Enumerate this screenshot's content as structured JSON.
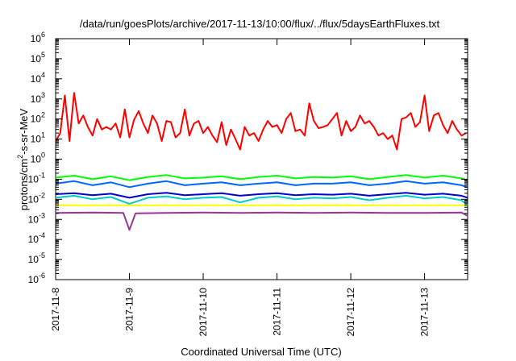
{
  "chart_data": {
    "type": "line",
    "title": "/data/run/goesPlots/archive/2017-11-13/10:00/flux/../flux/5daysEarthFluxes.txt",
    "ylabel": {
      "prefix": "protons/cm",
      "exponent": "2",
      "suffix": "-s-sr-MeV"
    },
    "xlabel": "Coordinated Universal Time (UTC)",
    "yscale": "log",
    "ylim": [
      1e-06,
      1000000.0
    ],
    "xlim": [
      "2017-11-08T00:00",
      "2017-11-13T14:00"
    ],
    "y_ticks": [
      {
        "base": "10",
        "exp": "-6",
        "value": 1e-06
      },
      {
        "base": "10",
        "exp": "-5",
        "value": 1e-05
      },
      {
        "base": "10",
        "exp": "-4",
        "value": 0.0001
      },
      {
        "base": "10",
        "exp": "-3",
        "value": 0.001
      },
      {
        "base": "10",
        "exp": "-2",
        "value": 0.01
      },
      {
        "base": "10",
        "exp": "-1",
        "value": 0.1
      },
      {
        "base": "10",
        "exp": "0",
        "value": 1
      },
      {
        "base": "10",
        "exp": "1",
        "value": 10
      },
      {
        "base": "10",
        "exp": "2",
        "value": 100
      },
      {
        "base": "10",
        "exp": "3",
        "value": 1000
      },
      {
        "base": "10",
        "exp": "4",
        "value": 10000
      },
      {
        "base": "10",
        "exp": "5",
        "value": 100000
      },
      {
        "base": "10",
        "exp": "6",
        "value": 1000000
      }
    ],
    "x_ticks": [
      "2017-11-8",
      "2017-11-9",
      "2017-11-10",
      "2017-11-11",
      "2017-11-12",
      "2017-11-13"
    ],
    "grid": false,
    "legend": "none",
    "series": [
      {
        "color": "#ff0000",
        "x": [
          "2017-11-08T00:00",
          "2017-11-08T01:30",
          "2017-11-08T03:00",
          "2017-11-08T04:30",
          "2017-11-08T06:00",
          "2017-11-08T07:30",
          "2017-11-08T09:00",
          "2017-11-08T10:30",
          "2017-11-08T12:00",
          "2017-11-08T13:30",
          "2017-11-08T15:00",
          "2017-11-08T16:30",
          "2017-11-08T18:00",
          "2017-11-08T19:30",
          "2017-11-08T21:00",
          "2017-11-08T22:30",
          "2017-11-09T00:00",
          "2017-11-09T01:30",
          "2017-11-09T03:00",
          "2017-11-09T04:30",
          "2017-11-09T06:00",
          "2017-11-09T07:30",
          "2017-11-09T09:00",
          "2017-11-09T10:30",
          "2017-11-09T12:00",
          "2017-11-09T13:30",
          "2017-11-09T15:00",
          "2017-11-09T16:30",
          "2017-11-09T18:00",
          "2017-11-09T19:30",
          "2017-11-09T21:00",
          "2017-11-09T22:30",
          "2017-11-10T00:00",
          "2017-11-10T01:30",
          "2017-11-10T03:00",
          "2017-11-10T04:30",
          "2017-11-10T06:00",
          "2017-11-10T07:30",
          "2017-11-10T09:00",
          "2017-11-10T10:30",
          "2017-11-10T12:00",
          "2017-11-10T13:30",
          "2017-11-10T15:00",
          "2017-11-10T16:30",
          "2017-11-10T18:00",
          "2017-11-10T19:30",
          "2017-11-10T21:00",
          "2017-11-10T22:30",
          "2017-11-11T00:00",
          "2017-11-11T01:30",
          "2017-11-11T03:00",
          "2017-11-11T04:30",
          "2017-11-11T06:00",
          "2017-11-11T07:30",
          "2017-11-11T09:00",
          "2017-11-11T10:30",
          "2017-11-11T12:00",
          "2017-11-11T13:30",
          "2017-11-11T15:00",
          "2017-11-11T16:30",
          "2017-11-11T18:00",
          "2017-11-11T19:30",
          "2017-11-11T21:00",
          "2017-11-11T22:30",
          "2017-11-12T00:00",
          "2017-11-12T01:30",
          "2017-11-12T03:00",
          "2017-11-12T04:30",
          "2017-11-12T06:00",
          "2017-11-12T07:30",
          "2017-11-12T09:00",
          "2017-11-12T10:30",
          "2017-11-12T12:00",
          "2017-11-12T13:30",
          "2017-11-12T15:00",
          "2017-11-12T16:30",
          "2017-11-12T18:00",
          "2017-11-12T19:30",
          "2017-11-12T21:00",
          "2017-11-12T22:30",
          "2017-11-13T00:00",
          "2017-11-13T01:30",
          "2017-11-13T03:00",
          "2017-11-13T04:30",
          "2017-11-13T06:00",
          "2017-11-13T07:30",
          "2017-11-13T09:00",
          "2017-11-13T10:30",
          "2017-11-13T12:00",
          "2017-11-13T13:30"
        ],
        "values": [
          8,
          20,
          1500,
          8,
          2000,
          60,
          150,
          40,
          15,
          100,
          30,
          40,
          30,
          60,
          12,
          300,
          12,
          90,
          250,
          60,
          20,
          150,
          60,
          8,
          80,
          70,
          12,
          20,
          300,
          15,
          60,
          80,
          20,
          40,
          15,
          7,
          70,
          5,
          30,
          10,
          3,
          40,
          15,
          20,
          8,
          30,
          80,
          40,
          50,
          20,
          100,
          200,
          25,
          30,
          15,
          600,
          80,
          35,
          40,
          50,
          100,
          200,
          15,
          80,
          25,
          40,
          150,
          60,
          80,
          40,
          15,
          20,
          10,
          15,
          3,
          100,
          120,
          200,
          40,
          70,
          1500,
          25,
          150,
          200,
          50,
          20,
          80,
          30,
          15,
          20
        ]
      },
      {
        "color": "#00ff00",
        "x": [
          "2017-11-08T00:00",
          "2017-11-08T06:00",
          "2017-11-08T12:00",
          "2017-11-08T18:00",
          "2017-11-09T00:00",
          "2017-11-09T06:00",
          "2017-11-09T12:00",
          "2017-11-09T18:00",
          "2017-11-10T00:00",
          "2017-11-10T06:00",
          "2017-11-10T12:00",
          "2017-11-10T18:00",
          "2017-11-11T00:00",
          "2017-11-11T06:00",
          "2017-11-11T12:00",
          "2017-11-11T18:00",
          "2017-11-12T00:00",
          "2017-11-12T06:00",
          "2017-11-12T12:00",
          "2017-11-12T18:00",
          "2017-11-13T00:00",
          "2017-11-13T06:00",
          "2017-11-13T12:00",
          "2017-11-13T14:00"
        ],
        "values": [
          0.12,
          0.15,
          0.1,
          0.14,
          0.09,
          0.13,
          0.16,
          0.11,
          0.12,
          0.14,
          0.1,
          0.13,
          0.15,
          0.11,
          0.13,
          0.12,
          0.14,
          0.1,
          0.13,
          0.16,
          0.12,
          0.15,
          0.11,
          0.09
        ]
      },
      {
        "color": "#0066ff",
        "x": [
          "2017-11-08T00:00",
          "2017-11-08T06:00",
          "2017-11-08T12:00",
          "2017-11-08T18:00",
          "2017-11-09T00:00",
          "2017-11-09T06:00",
          "2017-11-09T12:00",
          "2017-11-09T18:00",
          "2017-11-10T00:00",
          "2017-11-10T06:00",
          "2017-11-10T12:00",
          "2017-11-10T18:00",
          "2017-11-11T00:00",
          "2017-11-11T06:00",
          "2017-11-11T12:00",
          "2017-11-11T18:00",
          "2017-11-12T00:00",
          "2017-11-12T06:00",
          "2017-11-12T12:00",
          "2017-11-12T18:00",
          "2017-11-13T00:00",
          "2017-11-13T06:00",
          "2017-11-13T12:00",
          "2017-11-13T14:00"
        ],
        "values": [
          0.06,
          0.08,
          0.05,
          0.07,
          0.04,
          0.06,
          0.08,
          0.05,
          0.06,
          0.07,
          0.05,
          0.06,
          0.07,
          0.05,
          0.06,
          0.06,
          0.07,
          0.05,
          0.06,
          0.08,
          0.06,
          0.07,
          0.05,
          0.04
        ]
      },
      {
        "color": "#00cccc",
        "x": [
          "2017-11-08T00:00",
          "2017-11-08T06:00",
          "2017-11-08T12:00",
          "2017-11-08T18:00",
          "2017-11-09T00:00",
          "2017-11-09T06:00",
          "2017-11-09T12:00",
          "2017-11-09T18:00",
          "2017-11-10T00:00",
          "2017-11-10T06:00",
          "2017-11-10T12:00",
          "2017-11-10T18:00",
          "2017-11-11T00:00",
          "2017-11-11T06:00",
          "2017-11-11T12:00",
          "2017-11-11T18:00",
          "2017-11-12T00:00",
          "2017-11-12T06:00",
          "2017-11-12T12:00",
          "2017-11-12T18:00",
          "2017-11-13T00:00",
          "2017-11-13T06:00",
          "2017-11-13T12:00",
          "2017-11-13T14:00"
        ],
        "values": [
          0.012,
          0.015,
          0.01,
          0.013,
          0.006,
          0.012,
          0.014,
          0.01,
          0.012,
          0.013,
          0.007,
          0.012,
          0.014,
          0.01,
          0.012,
          0.011,
          0.013,
          0.009,
          0.012,
          0.015,
          0.011,
          0.013,
          0.009,
          0.005
        ]
      },
      {
        "color": "#0000cc",
        "x": [
          "2017-11-08T00:00",
          "2017-11-08T06:00",
          "2017-11-08T12:00",
          "2017-11-08T18:00",
          "2017-11-09T00:00",
          "2017-11-09T06:00",
          "2017-11-09T12:00",
          "2017-11-09T18:00",
          "2017-11-10T00:00",
          "2017-11-10T06:00",
          "2017-11-10T12:00",
          "2017-11-10T18:00",
          "2017-11-11T00:00",
          "2017-11-11T06:00",
          "2017-11-11T12:00",
          "2017-11-11T18:00",
          "2017-11-12T00:00",
          "2017-11-12T06:00",
          "2017-11-12T12:00",
          "2017-11-12T18:00",
          "2017-11-13T00:00",
          "2017-11-13T06:00",
          "2017-11-13T12:00",
          "2017-11-13T14:00"
        ],
        "values": [
          0.018,
          0.02,
          0.016,
          0.019,
          0.012,
          0.018,
          0.021,
          0.016,
          0.018,
          0.02,
          0.015,
          0.018,
          0.02,
          0.016,
          0.018,
          0.017,
          0.019,
          0.015,
          0.018,
          0.021,
          0.017,
          0.019,
          0.015,
          0.012
        ]
      },
      {
        "color": "#ffff00",
        "x": [
          "2017-11-08T00:00",
          "2017-11-09T00:00",
          "2017-11-10T00:00",
          "2017-11-11T00:00",
          "2017-11-12T00:00",
          "2017-11-13T00:00",
          "2017-11-13T14:00"
        ],
        "values": [
          0.005,
          0.005,
          0.005,
          0.005,
          0.005,
          0.005,
          0.005
        ]
      },
      {
        "color": "#993399",
        "x": [
          "2017-11-08T00:00",
          "2017-11-08T12:00",
          "2017-11-08T22:00",
          "2017-11-09T00:00",
          "2017-11-09T02:00",
          "2017-11-09T12:00",
          "2017-11-10T00:00",
          "2017-11-10T12:00",
          "2017-11-11T00:00",
          "2017-11-11T12:00",
          "2017-11-12T00:00",
          "2017-11-12T12:00",
          "2017-11-13T00:00",
          "2017-11-13T12:00",
          "2017-11-13T14:00"
        ],
        "values": [
          0.0021,
          0.0022,
          0.0021,
          0.0003,
          0.002,
          0.0021,
          0.0022,
          0.0021,
          0.0022,
          0.0021,
          0.0022,
          0.0021,
          0.0021,
          0.0022,
          0.0015
        ]
      }
    ]
  }
}
